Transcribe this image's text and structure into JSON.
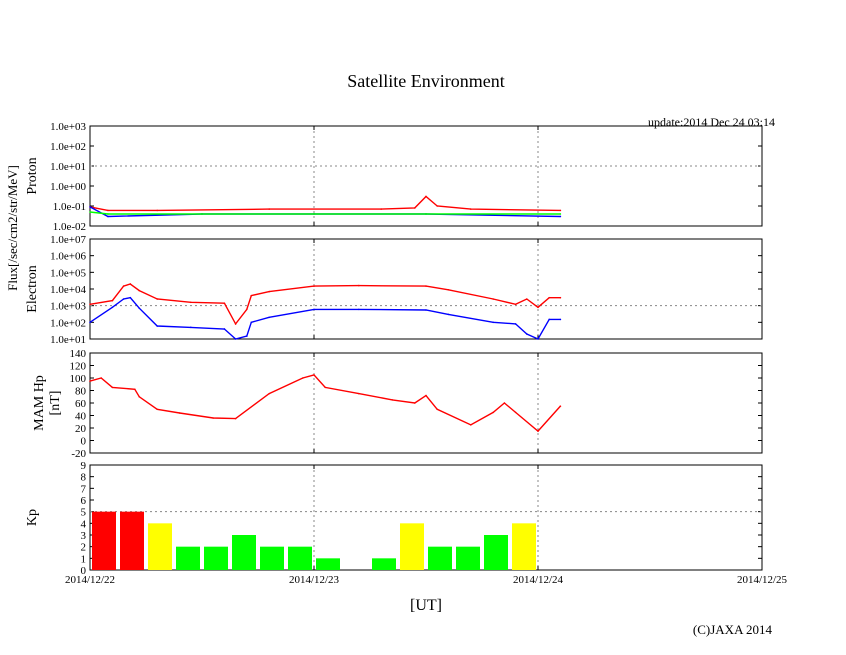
{
  "title": "Satellite Environment",
  "update": "update:2014 Dec 24 03:14",
  "copyright": "(C)JAXA 2014",
  "colors": {
    "red": "#ff0000",
    "blue": "#0000ff",
    "green": "#00ff00",
    "yellow": "#ffff00",
    "grid": "#888888",
    "axis": "#000000"
  },
  "chart_data": [
    {
      "type": "line",
      "panel": "proton",
      "ylabel": "Proton",
      "shared_ylabel": "Flux[/sec/cm2/str/MeV]",
      "yscale": "log",
      "ylim": [
        0.01,
        1000
      ],
      "yticks": [
        "1.0e-02",
        "1.0e-01",
        "1.0e+00",
        "1.0e+01",
        "1.0e+02",
        "1.0e+03"
      ],
      "xlim": [
        0,
        3
      ],
      "series": [
        {
          "name": "red",
          "color": "#ff0000",
          "x": [
            0.0,
            0.08,
            0.3,
            0.8,
            1.3,
            1.45,
            1.5,
            1.55,
            1.7,
            2.1
          ],
          "y": [
            0.09,
            0.06,
            0.06,
            0.07,
            0.07,
            0.08,
            0.3,
            0.1,
            0.07,
            0.06
          ]
        },
        {
          "name": "blue",
          "color": "#0000ff",
          "x": [
            0.0,
            0.08,
            0.5,
            1.0,
            1.5,
            2.1
          ],
          "y": [
            0.09,
            0.03,
            0.04,
            0.04,
            0.04,
            0.03
          ]
        },
        {
          "name": "green",
          "color": "#00ff00",
          "x": [
            0.0,
            0.08,
            0.5,
            1.0,
            1.5,
            2.1
          ],
          "y": [
            0.05,
            0.04,
            0.04,
            0.04,
            0.04,
            0.04
          ]
        }
      ]
    },
    {
      "type": "line",
      "panel": "electron",
      "ylabel": "Electron",
      "yscale": "log",
      "ylim": [
        10,
        10000000
      ],
      "yticks": [
        "1.0e+01",
        "1.0e+02",
        "1.0e+03",
        "1.0e+04",
        "1.0e+05",
        "1.0e+06",
        "1.0e+07"
      ],
      "xlim": [
        0,
        3
      ],
      "series": [
        {
          "name": "red",
          "color": "#ff0000",
          "x": [
            0.0,
            0.1,
            0.15,
            0.18,
            0.22,
            0.3,
            0.45,
            0.6,
            0.65,
            0.7,
            0.72,
            0.8,
            1.0,
            1.2,
            1.5,
            1.6,
            1.8,
            1.9,
            1.95,
            2.0,
            2.05,
            2.1
          ],
          "y": [
            1200,
            2000,
            15000,
            20000,
            8000,
            2500,
            1600,
            1400,
            80,
            600,
            4000,
            7000,
            15000,
            16000,
            15000,
            9000,
            2500,
            1200,
            2500,
            800,
            3000,
            3000
          ]
        },
        {
          "name": "blue",
          "color": "#0000ff",
          "x": [
            0.0,
            0.1,
            0.15,
            0.18,
            0.22,
            0.3,
            0.45,
            0.6,
            0.65,
            0.7,
            0.72,
            0.8,
            1.0,
            1.2,
            1.5,
            1.6,
            1.8,
            1.9,
            1.95,
            2.0,
            2.05,
            2.1
          ],
          "y": [
            100,
            800,
            2500,
            3000,
            700,
            60,
            50,
            40,
            10,
            15,
            100,
            200,
            600,
            600,
            550,
            300,
            100,
            80,
            20,
            10,
            150,
            150
          ]
        }
      ]
    },
    {
      "type": "line",
      "panel": "mam-hp",
      "ylabel": "MAM Hp",
      "ylabel2": "[nT]",
      "ylim": [
        -20,
        140
      ],
      "yticks": [
        "-20",
        "0",
        "20",
        "40",
        "60",
        "80",
        "100",
        "120",
        "140"
      ],
      "xlim": [
        0,
        3
      ],
      "series": [
        {
          "name": "red",
          "color": "#ff0000",
          "x": [
            0.0,
            0.05,
            0.1,
            0.2,
            0.22,
            0.3,
            0.4,
            0.55,
            0.65,
            0.8,
            0.95,
            1.0,
            1.05,
            1.2,
            1.35,
            1.45,
            1.5,
            1.55,
            1.7,
            1.8,
            1.85,
            1.9,
            2.0,
            2.1
          ],
          "y": [
            95,
            100,
            85,
            82,
            70,
            50,
            44,
            36,
            35,
            75,
            100,
            105,
            85,
            75,
            65,
            60,
            72,
            50,
            25,
            45,
            60,
            45,
            15,
            55
          ]
        }
      ]
    },
    {
      "type": "bar",
      "panel": "kp",
      "ylabel": "Kp",
      "ylim": [
        0,
        9
      ],
      "yticks": [
        "0",
        "1",
        "2",
        "3",
        "4",
        "5",
        "6",
        "7",
        "8",
        "9"
      ],
      "xlim": [
        0,
        3
      ],
      "bin_width_days": 0.125,
      "values": [
        5,
        5,
        4,
        2,
        2,
        3,
        2,
        2,
        1,
        0,
        1,
        4,
        2,
        2,
        3,
        4
      ],
      "thresholds": {
        "red_at_or_above": 5,
        "yellow_at_or_above": 4
      }
    }
  ],
  "x_axis": {
    "label": "[UT]",
    "ticks": [
      "2014/12/22",
      "2014/12/23",
      "2014/12/24",
      "2014/12/25"
    ]
  }
}
